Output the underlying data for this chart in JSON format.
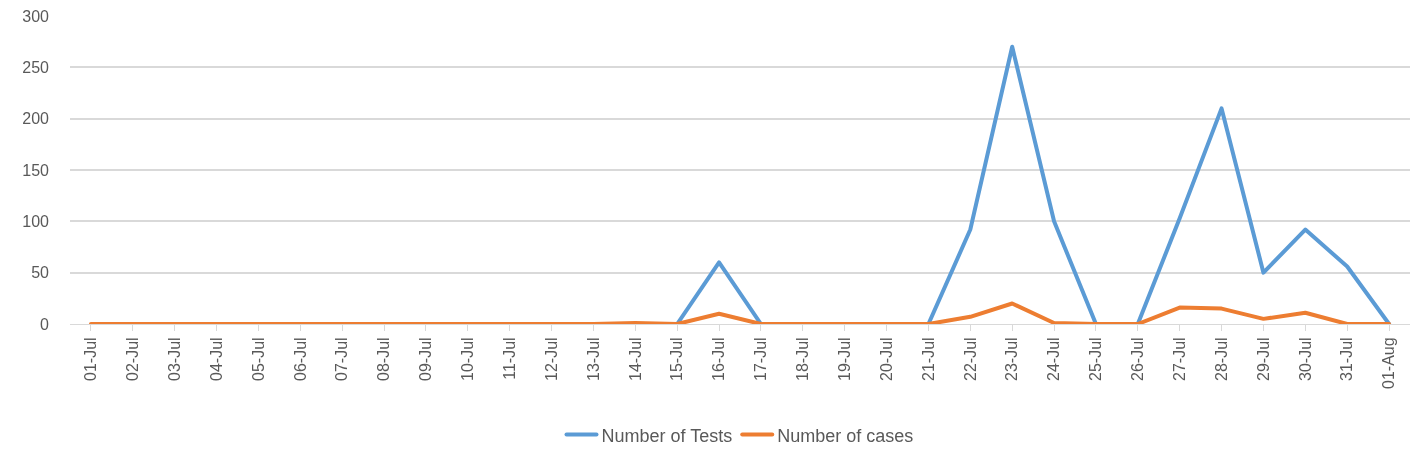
{
  "chart_data": {
    "type": "line",
    "categories": [
      "01-Jul",
      "02-Jul",
      "03-Jul",
      "04-Jul",
      "05-Jul",
      "06-Jul",
      "07-Jul",
      "08-Jul",
      "09-Jul",
      "10-Jul",
      "11-Jul",
      "12-Jul",
      "13-Jul",
      "14-Jul",
      "15-Jul",
      "16-Jul",
      "17-Jul",
      "18-Jul",
      "19-Jul",
      "20-Jul",
      "21-Jul",
      "22-Jul",
      "23-Jul",
      "24-Jul",
      "25-Jul",
      "26-Jul",
      "27-Jul",
      "28-Jul",
      "29-Jul",
      "30-Jul",
      "31-Jul",
      "01-Aug"
    ],
    "series": [
      {
        "name": "Number of Tests",
        "color": "#5b9bd5",
        "values": [
          null,
          null,
          null,
          null,
          null,
          null,
          null,
          null,
          null,
          null,
          null,
          null,
          null,
          null,
          0,
          60,
          0,
          null,
          null,
          null,
          0,
          92,
          270,
          100,
          0,
          0,
          103,
          210,
          50,
          92,
          56,
          0
        ]
      },
      {
        "name": "Number of cases",
        "color": "#ed7d31",
        "values": [
          0,
          0,
          0,
          0,
          0,
          0,
          0,
          0,
          0,
          0,
          0,
          0,
          0,
          1,
          0,
          10,
          0,
          0,
          0,
          0,
          0,
          7,
          20,
          1,
          0,
          0,
          16,
          15,
          5,
          11,
          0,
          0
        ]
      }
    ],
    "ylim": [
      0,
      300
    ],
    "yticks": [
      0,
      50,
      100,
      150,
      200,
      250,
      300
    ],
    "grid": "y",
    "legend": "bottom",
    "marker": "none",
    "line_style": "solid"
  }
}
